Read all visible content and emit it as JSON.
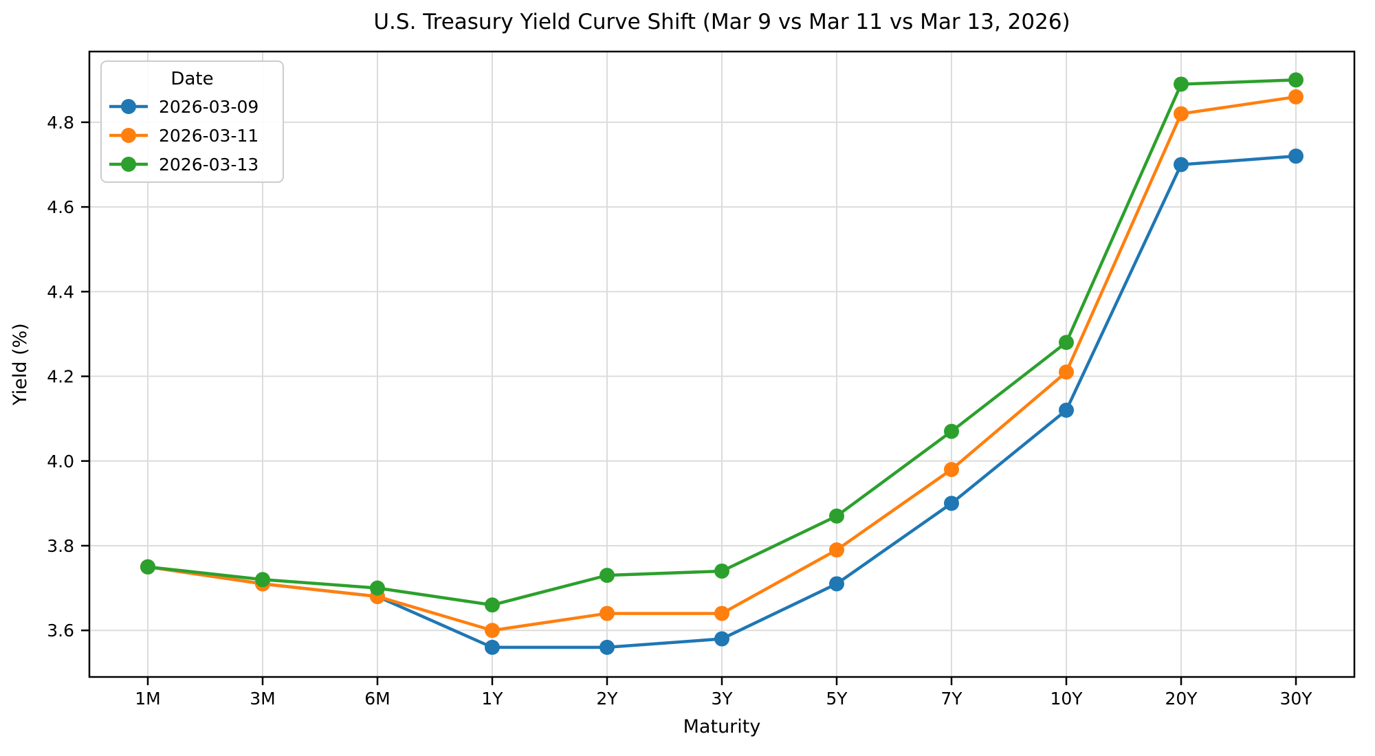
{
  "chart_data": {
    "type": "line",
    "title": "U.S. Treasury Yield Curve Shift (Mar 9 vs Mar 11 vs Mar 13, 2026)",
    "xlabel": "Maturity",
    "ylabel": "Yield (%)",
    "categories": [
      "1M",
      "3M",
      "6M",
      "1Y",
      "2Y",
      "3Y",
      "5Y",
      "7Y",
      "10Y",
      "20Y",
      "30Y"
    ],
    "series": [
      {
        "name": "2026-03-09",
        "color": "#1f77b4",
        "values": [
          3.75,
          3.71,
          3.68,
          3.56,
          3.56,
          3.58,
          3.71,
          3.9,
          4.12,
          4.7,
          4.72
        ]
      },
      {
        "name": "2026-03-11",
        "color": "#ff7f0e",
        "values": [
          3.75,
          3.71,
          3.68,
          3.6,
          3.64,
          3.64,
          3.79,
          3.98,
          4.21,
          4.82,
          4.86
        ]
      },
      {
        "name": "2026-03-13",
        "color": "#2ca02c",
        "values": [
          3.75,
          3.72,
          3.7,
          3.66,
          3.73,
          3.74,
          3.87,
          4.07,
          4.28,
          4.89,
          4.9
        ]
      }
    ],
    "yticks": [
      "3.6",
      "3.8",
      "4.0",
      "4.2",
      "4.4",
      "4.6",
      "4.8"
    ],
    "ylim": [
      3.49,
      4.967
    ],
    "grid": true,
    "legend": {
      "title": "Date",
      "position": "upper left"
    }
  },
  "styles": {
    "background": "#ffffff",
    "grid_color": "#dcdcdc",
    "spine_color": "#000000",
    "text_color": "#000000",
    "legend_border": "#cccccc",
    "legend_fill": "#ffffff"
  }
}
